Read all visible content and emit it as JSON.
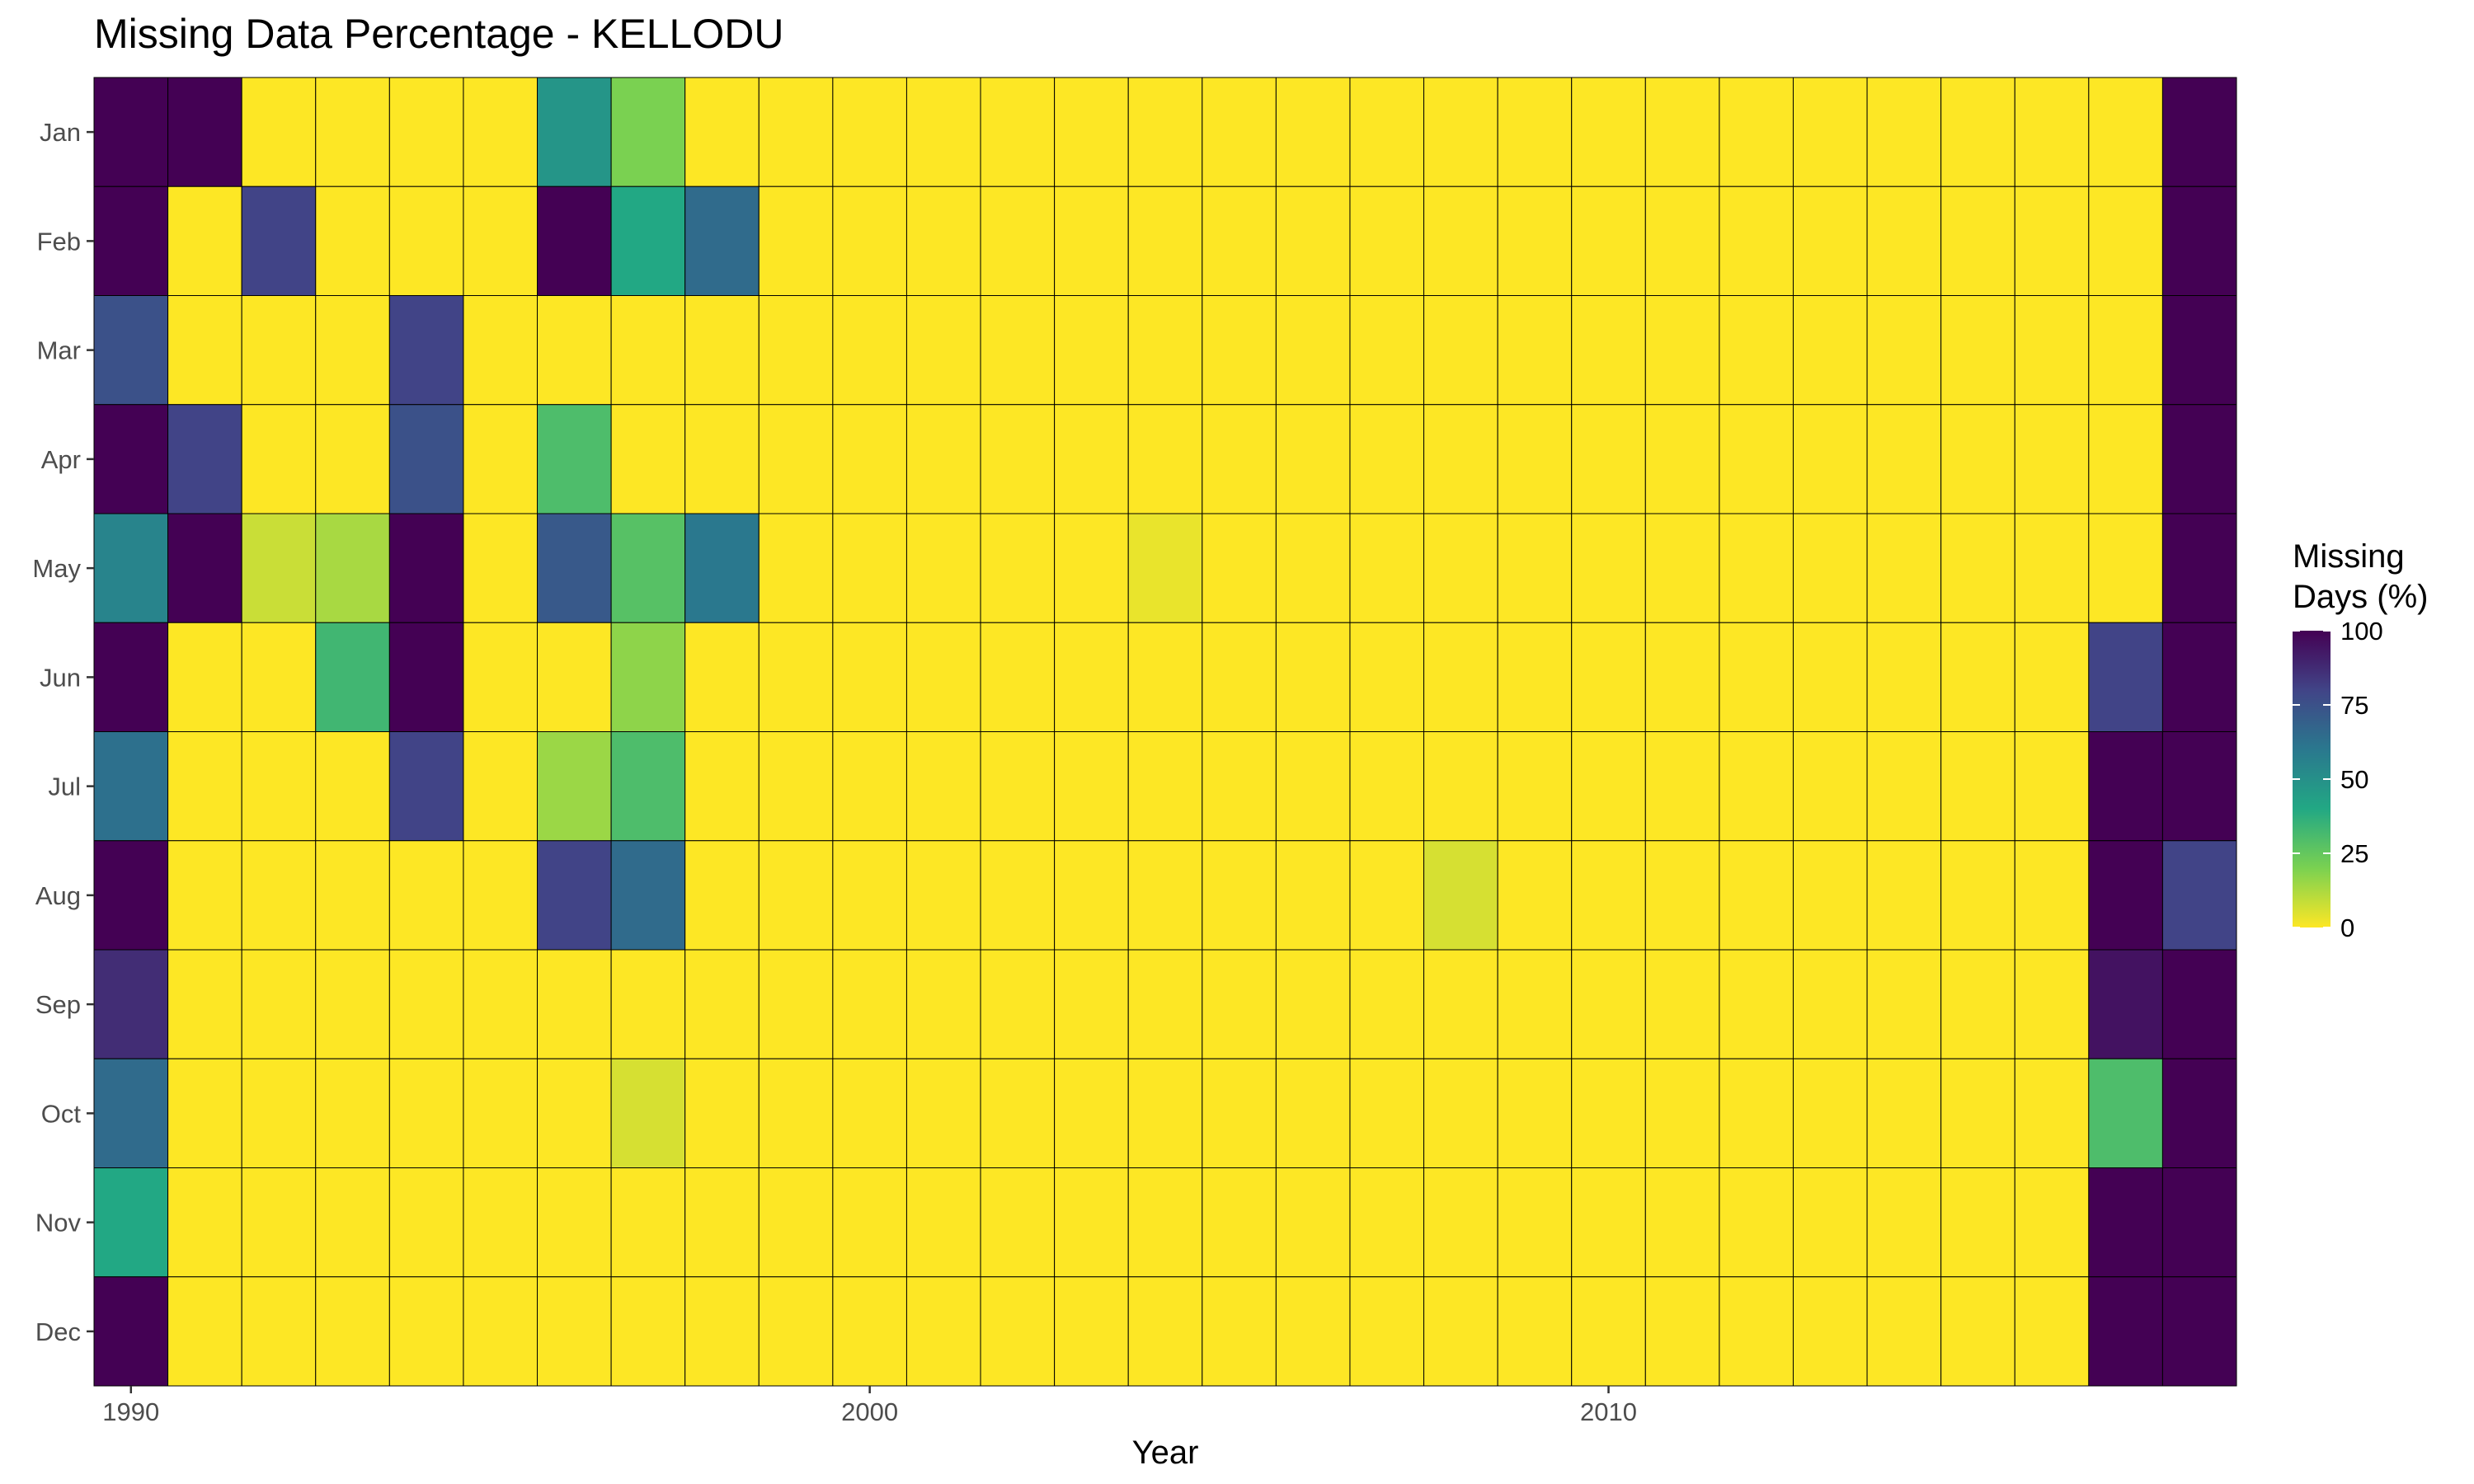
{
  "chart_data": {
    "type": "heatmap",
    "title": "Missing Data Percentage - KELLODU",
    "xlabel": "Year",
    "ylabel": "",
    "x_tick_labels": [
      "1990",
      "2000",
      "2010"
    ],
    "x_tick_values": [
      1990,
      2000,
      2010
    ],
    "x_range": [
      1990,
      2018
    ],
    "months": [
      "Jan",
      "Feb",
      "Mar",
      "Apr",
      "May",
      "Jun",
      "Jul",
      "Aug",
      "Sep",
      "Oct",
      "Nov",
      "Dec"
    ],
    "years": [
      1990,
      1991,
      1992,
      1993,
      1994,
      1995,
      1996,
      1997,
      1998,
      1999,
      2000,
      2001,
      2002,
      2003,
      2004,
      2005,
      2006,
      2007,
      2008,
      2009,
      2010,
      2011,
      2012,
      2013,
      2014,
      2015,
      2016,
      2017,
      2018
    ],
    "values": [
      [
        100,
        100,
        0,
        0,
        0,
        0,
        48,
        20,
        0,
        0,
        0,
        0,
        0,
        0,
        0,
        0,
        0,
        0,
        0,
        0,
        0,
        0,
        0,
        0,
        0,
        0,
        0,
        0,
        100
      ],
      [
        100,
        0,
        80,
        0,
        0,
        0,
        100,
        40,
        65,
        0,
        0,
        0,
        0,
        0,
        0,
        0,
        0,
        0,
        0,
        0,
        0,
        0,
        0,
        0,
        0,
        0,
        0,
        0,
        100
      ],
      [
        75,
        0,
        0,
        0,
        80,
        0,
        0,
        0,
        0,
        0,
        0,
        0,
        0,
        0,
        0,
        0,
        0,
        0,
        0,
        0,
        0,
        0,
        0,
        0,
        0,
        0,
        0,
        0,
        100
      ],
      [
        100,
        80,
        0,
        0,
        75,
        0,
        30,
        0,
        0,
        0,
        0,
        0,
        0,
        0,
        0,
        0,
        0,
        0,
        0,
        0,
        0,
        0,
        0,
        0,
        0,
        0,
        0,
        0,
        100
      ],
      [
        55,
        100,
        8,
        13,
        100,
        0,
        72,
        28,
        60,
        0,
        0,
        0,
        0,
        0,
        3,
        0,
        0,
        0,
        0,
        0,
        0,
        0,
        0,
        0,
        0,
        0,
        0,
        0,
        100
      ],
      [
        100,
        0,
        0,
        33,
        100,
        0,
        0,
        17,
        0,
        0,
        0,
        0,
        0,
        0,
        0,
        0,
        0,
        0,
        0,
        0,
        0,
        0,
        0,
        0,
        0,
        0,
        0,
        80,
        100
      ],
      [
        63,
        0,
        0,
        0,
        80,
        0,
        15,
        30,
        0,
        0,
        0,
        0,
        0,
        0,
        0,
        0,
        0,
        0,
        0,
        0,
        0,
        0,
        0,
        0,
        0,
        0,
        0,
        100,
        100
      ],
      [
        100,
        0,
        0,
        0,
        0,
        0,
        80,
        65,
        0,
        0,
        0,
        0,
        0,
        0,
        0,
        0,
        0,
        0,
        6,
        0,
        0,
        0,
        0,
        0,
        0,
        0,
        0,
        100,
        80
      ],
      [
        87,
        0,
        0,
        0,
        0,
        0,
        0,
        0,
        0,
        0,
        0,
        0,
        0,
        0,
        0,
        0,
        0,
        0,
        0,
        0,
        0,
        0,
        0,
        0,
        0,
        0,
        0,
        95,
        100
      ],
      [
        65,
        0,
        0,
        0,
        0,
        0,
        0,
        6,
        0,
        0,
        0,
        0,
        0,
        0,
        0,
        0,
        0,
        0,
        0,
        0,
        0,
        0,
        0,
        0,
        0,
        0,
        0,
        30,
        100
      ],
      [
        40,
        0,
        0,
        0,
        0,
        0,
        0,
        0,
        0,
        0,
        0,
        0,
        0,
        0,
        0,
        0,
        0,
        0,
        0,
        0,
        0,
        0,
        0,
        0,
        0,
        0,
        0,
        100,
        100
      ],
      [
        100,
        0,
        0,
        0,
        0,
        0,
        0,
        0,
        0,
        0,
        0,
        0,
        0,
        0,
        0,
        0,
        0,
        0,
        0,
        0,
        0,
        0,
        0,
        0,
        0,
        0,
        0,
        100,
        100
      ]
    ],
    "color_scale": {
      "name": "viridis",
      "reversed": true,
      "range": [
        0,
        100
      ],
      "stops": [
        "#FDE725",
        "#7AD151",
        "#22A884",
        "#2A788E",
        "#414487",
        "#440154"
      ]
    },
    "legend": {
      "title_line1": "Missing",
      "title_line2": "Days (%)",
      "ticks": [
        100,
        75,
        50,
        25,
        0
      ],
      "tick_labels": [
        "100",
        "75",
        "50",
        "25",
        "0"
      ],
      "position": "right"
    },
    "grid": false
  }
}
